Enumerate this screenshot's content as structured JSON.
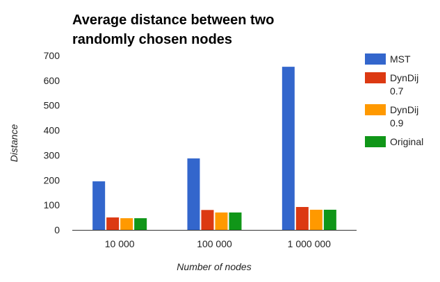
{
  "chart_data": {
    "type": "bar",
    "title": "Average distance between two randomly chosen nodes",
    "title_lines": [
      "Average distance between two",
      "randomly chosen nodes"
    ],
    "xlabel": "Number of nodes",
    "ylabel": "Distance",
    "categories": [
      "10 000",
      "100 000",
      "1 000 000"
    ],
    "ylim": [
      0,
      700
    ],
    "yticks": [
      0,
      100,
      200,
      300,
      400,
      500,
      600,
      700
    ],
    "grid": false,
    "legend_position": "right",
    "series": [
      {
        "name": "MST",
        "legend_lines": [
          "MST"
        ],
        "color": "#3366cc",
        "values": [
          195,
          287,
          655
        ]
      },
      {
        "name": "DynDij 0.7",
        "legend_lines": [
          "DynDij",
          "0.7"
        ],
        "color": "#dc3912",
        "values": [
          50,
          80,
          92
        ]
      },
      {
        "name": "DynDij 0.9",
        "legend_lines": [
          "DynDij",
          "0.9"
        ],
        "color": "#ff9900",
        "values": [
          47,
          70,
          81
        ]
      },
      {
        "name": "Original",
        "legend_lines": [
          "Original"
        ],
        "color": "#109618",
        "values": [
          47,
          70,
          81
        ]
      }
    ]
  }
}
